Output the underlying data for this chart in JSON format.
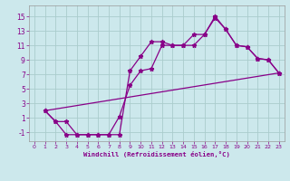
{
  "background_color": "#cce8ec",
  "line_color": "#880088",
  "grid_color": "#aacccc",
  "xlabel": "Windchill (Refroidissement éolien,°C)",
  "xlim": [
    -0.5,
    23.5
  ],
  "ylim": [
    -2.2,
    16.5
  ],
  "xticks": [
    0,
    1,
    2,
    3,
    4,
    5,
    6,
    7,
    8,
    9,
    10,
    11,
    12,
    13,
    14,
    15,
    16,
    17,
    18,
    19,
    20,
    21,
    22,
    23
  ],
  "yticks": [
    -1,
    1,
    3,
    5,
    7,
    9,
    11,
    13,
    15
  ],
  "line1_x": [
    1,
    2,
    3,
    4,
    5,
    6,
    7,
    8,
    9,
    10,
    11,
    12,
    13,
    14,
    15,
    16,
    17,
    18,
    19,
    20,
    21,
    22,
    23
  ],
  "line1_y": [
    2.0,
    0.5,
    0.5,
    -1.3,
    -1.3,
    -1.3,
    -1.3,
    -1.3,
    7.5,
    9.5,
    11.5,
    11.5,
    11.0,
    11.0,
    11.0,
    12.5,
    15.0,
    13.2,
    11.0,
    10.8,
    9.2,
    9.0,
    7.2
  ],
  "line2_x": [
    1,
    2,
    3,
    4,
    5,
    6,
    7,
    8,
    9,
    10,
    11,
    12,
    13,
    14,
    15,
    16,
    17,
    18,
    19,
    20,
    21,
    22,
    23
  ],
  "line2_y": [
    2.0,
    0.5,
    -1.3,
    -1.3,
    -1.3,
    -1.3,
    -1.3,
    1.2,
    5.5,
    7.5,
    7.8,
    11.0,
    11.0,
    11.0,
    12.5,
    12.5,
    14.8,
    13.2,
    11.0,
    10.8,
    9.2,
    9.0,
    7.2
  ],
  "line3_x": [
    1,
    23
  ],
  "line3_y": [
    2.0,
    7.2
  ]
}
